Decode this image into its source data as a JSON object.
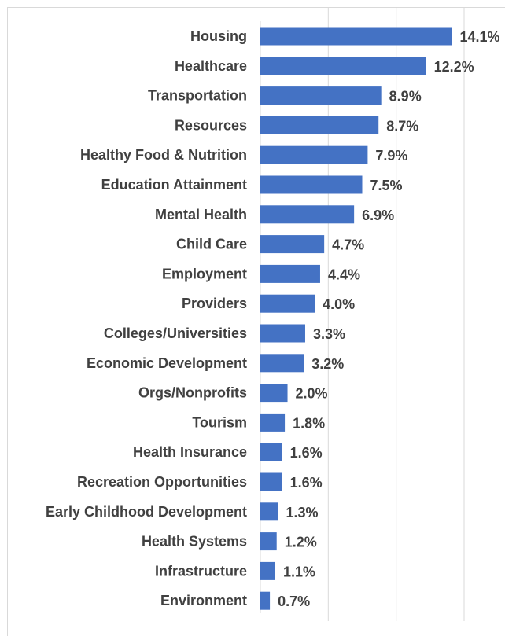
{
  "chart_data": {
    "type": "bar",
    "orientation": "horizontal",
    "categories": [
      "Housing",
      "Healthcare",
      "Transportation",
      "Resources",
      "Healthy Food & Nutrition",
      "Education Attainment",
      "Mental Health",
      "Child Care",
      "Employment",
      "Providers",
      "Colleges/Universities",
      "Economic Development",
      "Orgs/Nonprofits",
      "Tourism",
      "Health Insurance",
      "Recreation Opportunities",
      "Early Childhood Development",
      "Health Systems",
      "Infrastructure",
      "Environment"
    ],
    "values": [
      14.1,
      12.2,
      8.9,
      8.7,
      7.9,
      7.5,
      6.9,
      4.7,
      4.4,
      4.0,
      3.3,
      3.2,
      2.0,
      1.8,
      1.6,
      1.6,
      1.3,
      1.2,
      1.1,
      0.7
    ],
    "value_labels": [
      "14.1%",
      "12.2%",
      "8.9%",
      "8.7%",
      "7.9%",
      "7.5%",
      "6.9%",
      "4.7%",
      "4.4%",
      "4.0%",
      "3.3%",
      "3.2%",
      "2.0%",
      "1.8%",
      "1.6%",
      "1.6%",
      "1.3%",
      "1.2%",
      "1.1%",
      "0.7%"
    ],
    "xlim": [
      0,
      15
    ],
    "grid_x_values": [
      5,
      10,
      15
    ],
    "grid": true,
    "legend": "none",
    "bar_color": "#4472c4",
    "grid_color": "#d9d9d9",
    "text_color": "#404040"
  }
}
